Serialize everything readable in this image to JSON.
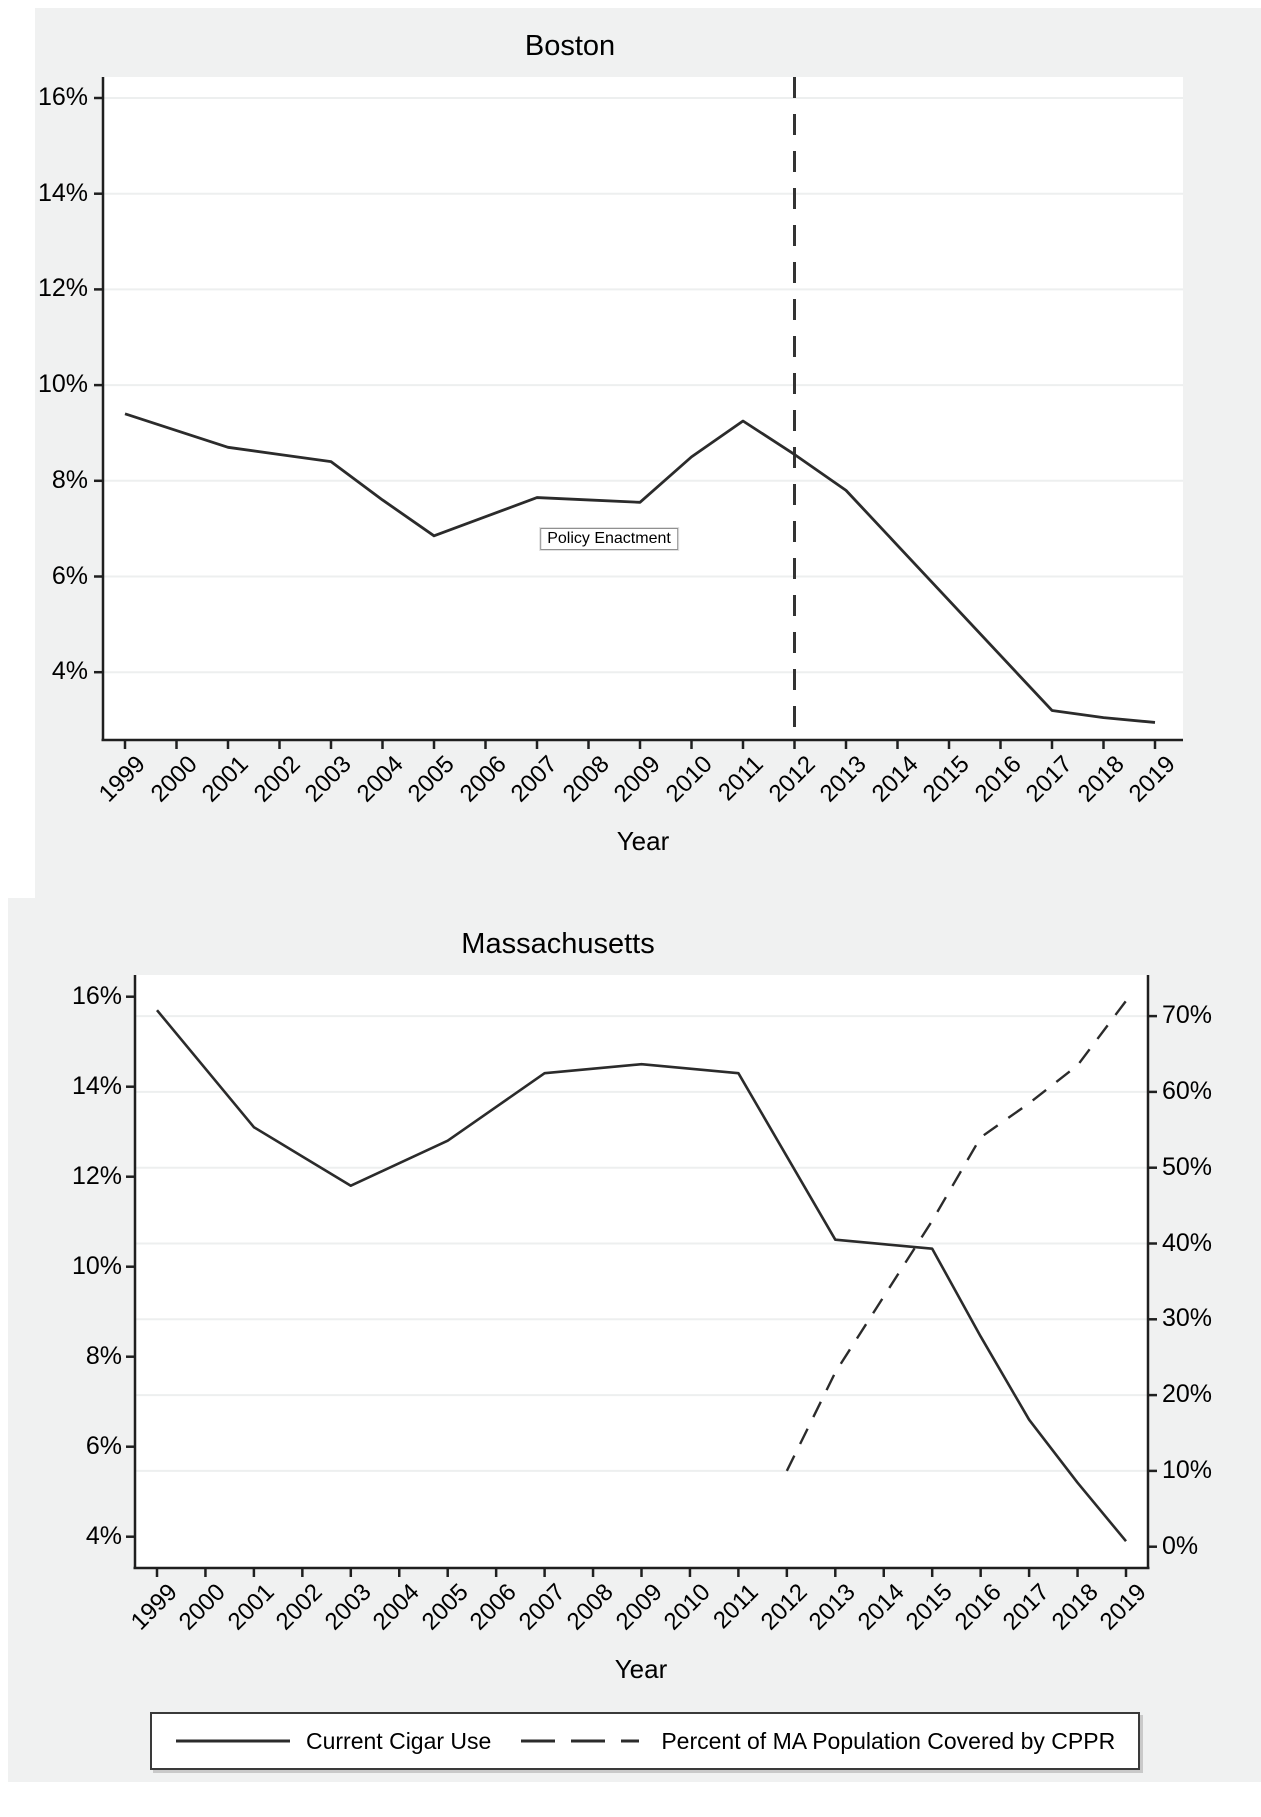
{
  "colors": {
    "panel_background": "#f0f1f1",
    "plot_background": "#ffffff",
    "axis_line": "#1f1f1f",
    "series_line": "#2b2b2b",
    "gridline": "#edefef",
    "text": "#000000"
  },
  "legend": {
    "items": [
      {
        "label": "Current Cigar Use",
        "style": "solid"
      },
      {
        "label": "Percent of MA Population Covered by CPPR",
        "style": "dashed"
      }
    ]
  },
  "chart_data": [
    {
      "type": "line",
      "title": "Boston",
      "xlabel": "Year",
      "x": [
        1999,
        2000,
        2001,
        2002,
        2003,
        2004,
        2005,
        2006,
        2007,
        2008,
        2009,
        2010,
        2011,
        2012,
        2013,
        2014,
        2015,
        2016,
        2017,
        2018,
        2019
      ],
      "yticks": [
        16,
        14,
        12,
        10,
        8,
        6,
        4
      ],
      "ytick_suffix": "%",
      "grid": true,
      "series": [
        {
          "name": "Current Cigar Use",
          "style": "solid",
          "values": [
            9.4,
            9.05,
            8.7,
            8.55,
            8.4,
            7.6,
            6.85,
            7.25,
            7.65,
            7.6,
            7.55,
            8.5,
            9.25,
            8.55,
            7.8,
            6.65,
            5.5,
            4.35,
            3.2,
            3.05,
            2.95
          ]
        }
      ],
      "annotation": {
        "label": "Policy Enactment",
        "vline_year": 2012
      }
    },
    {
      "type": "line",
      "title": "Massachusetts",
      "xlabel": "Year",
      "x": [
        1999,
        2000,
        2001,
        2002,
        2003,
        2004,
        2005,
        2006,
        2007,
        2008,
        2009,
        2010,
        2011,
        2012,
        2013,
        2014,
        2015,
        2016,
        2017,
        2018,
        2019
      ],
      "left_yticks": [
        16,
        14,
        12,
        10,
        8,
        6,
        4
      ],
      "right_yticks": [
        70,
        60,
        50,
        40,
        30,
        20,
        10,
        0
      ],
      "ytick_suffix": "%",
      "grid": true,
      "series": [
        {
          "name": "Current Cigar Use",
          "axis": "left",
          "style": "solid",
          "values": [
            15.7,
            14.4,
            13.1,
            12.45,
            11.8,
            12.3,
            12.8,
            13.55,
            14.3,
            14.4,
            14.5,
            14.4,
            14.3,
            12.45,
            10.6,
            10.5,
            10.4,
            8.45,
            6.6,
            5.2,
            3.9
          ]
        },
        {
          "name": "Percent of MA Population Covered by CPPR",
          "axis": "right",
          "style": "dashed",
          "start_year": 2012,
          "values": [
            10,
            23,
            33,
            43,
            54,
            58.5,
            63.5,
            72
          ]
        }
      ]
    }
  ]
}
